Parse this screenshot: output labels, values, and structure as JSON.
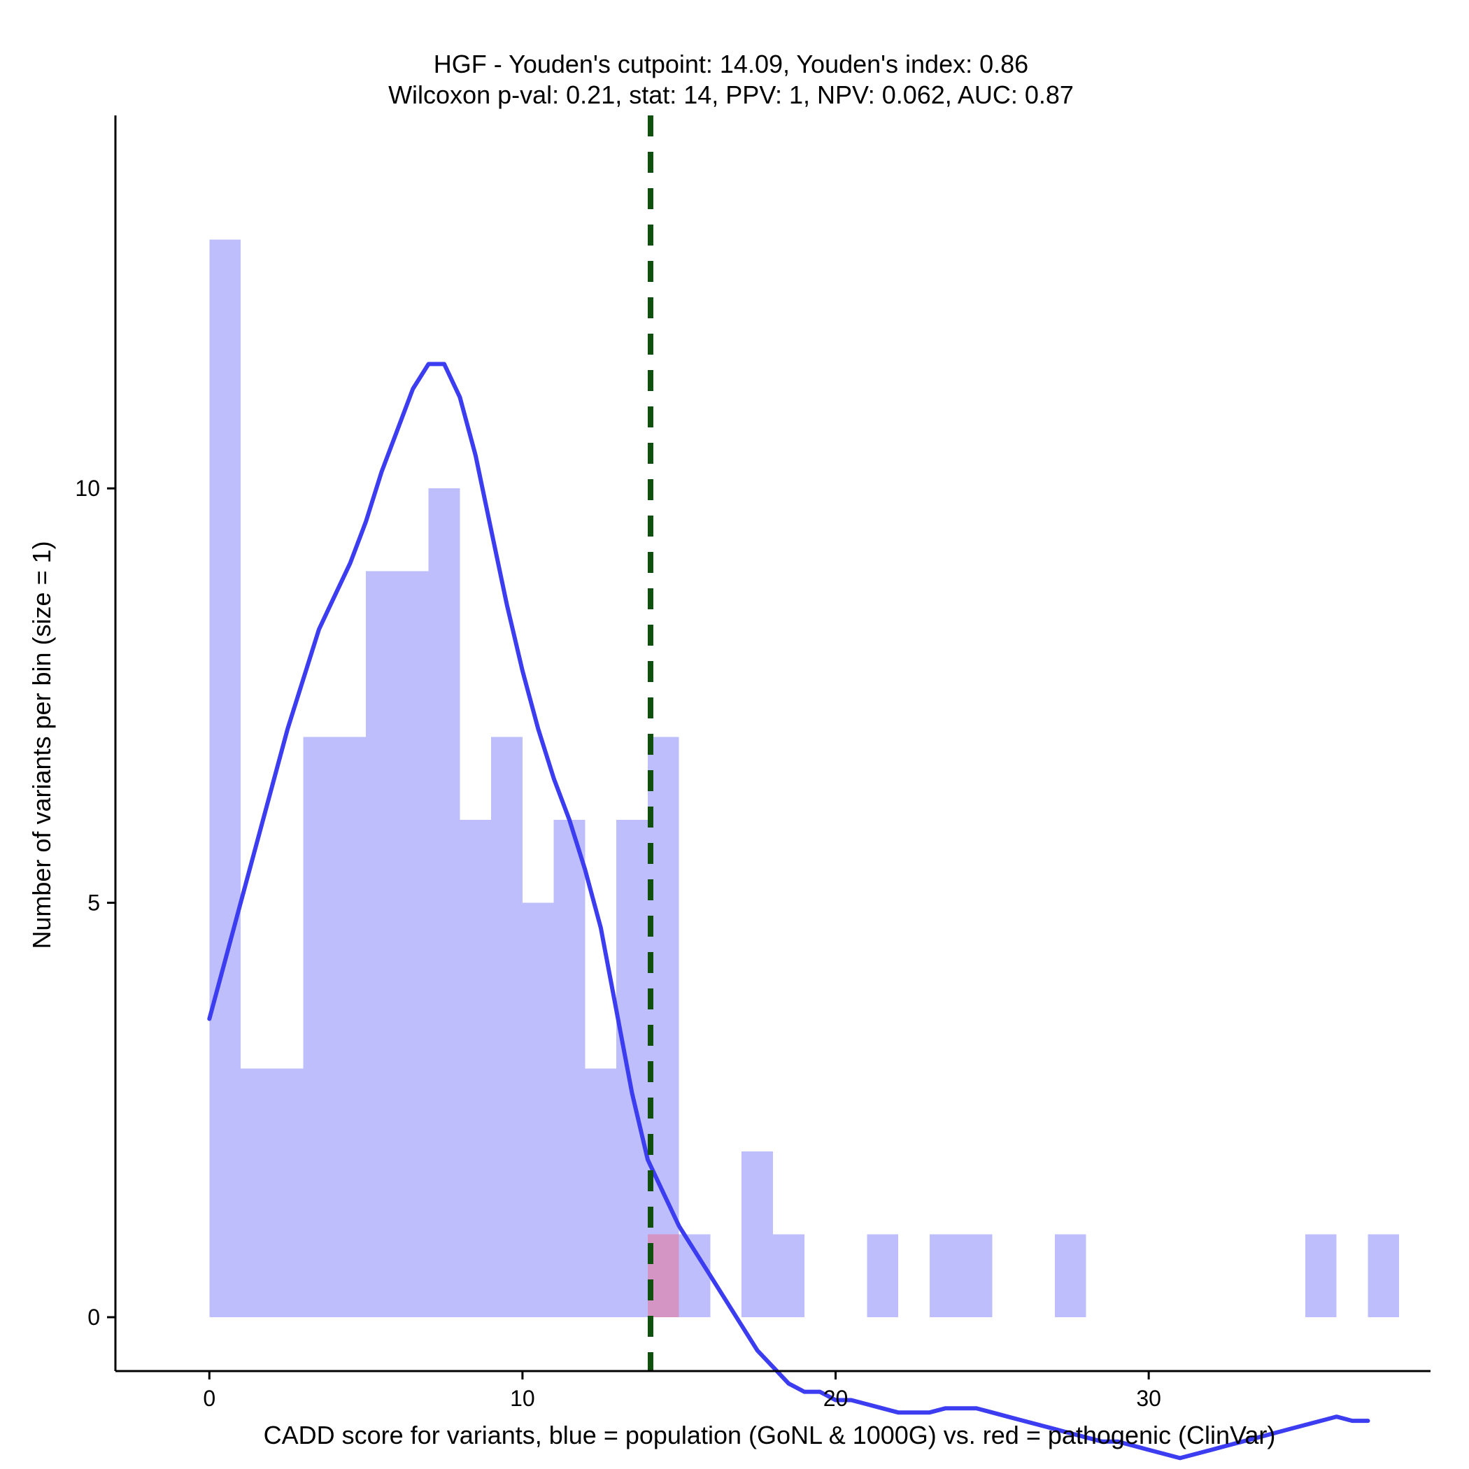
{
  "chart_data": {
    "type": "bar",
    "title_line1": "HGF - Youden's cutpoint: 14.09, Youden's index: 0.86",
    "title_line2": "Wilcoxon p-val: 0.21, stat: 14, PPV: 1, NPV: 0.062, AUC: 0.87",
    "xlabel": "CADD score for variants, blue = population (GoNL & 1000G) vs. red = pathogenic (ClinVar)",
    "ylabel": "Number of variants per bin (size = 1)",
    "xlim": [
      -3,
      39
    ],
    "ylim": [
      -0.65,
      14.5
    ],
    "xticks": [
      0,
      10,
      20,
      30
    ],
    "yticks": [
      0,
      5,
      10
    ],
    "bin_size": 1,
    "colors": {
      "population": "#bebefd",
      "pathogenic": "#d495c4",
      "density": "#3c3cf0",
      "cutpoint": "#0f500f"
    },
    "cutpoint": 14.09,
    "series": [
      {
        "name": "population",
        "bins": [
          {
            "x0": 0,
            "count": 13
          },
          {
            "x0": 1,
            "count": 3
          },
          {
            "x0": 2,
            "count": 3
          },
          {
            "x0": 3,
            "count": 7
          },
          {
            "x0": 4,
            "count": 7
          },
          {
            "x0": 5,
            "count": 9
          },
          {
            "x0": 6,
            "count": 9
          },
          {
            "x0": 7,
            "count": 10
          },
          {
            "x0": 8,
            "count": 6
          },
          {
            "x0": 9,
            "count": 7
          },
          {
            "x0": 10,
            "count": 5
          },
          {
            "x0": 11,
            "count": 6
          },
          {
            "x0": 12,
            "count": 3
          },
          {
            "x0": 13,
            "count": 6
          },
          {
            "x0": 14,
            "count": 7
          },
          {
            "x0": 15,
            "count": 1
          },
          {
            "x0": 17,
            "count": 2
          },
          {
            "x0": 18,
            "count": 1
          },
          {
            "x0": 21,
            "count": 1
          },
          {
            "x0": 23,
            "count": 1
          },
          {
            "x0": 24,
            "count": 1
          },
          {
            "x0": 27,
            "count": 1
          },
          {
            "x0": 35,
            "count": 1
          },
          {
            "x0": 37,
            "count": 1
          }
        ]
      },
      {
        "name": "pathogenic",
        "bins": [
          {
            "x0": 14,
            "count": 1
          }
        ]
      }
    ],
    "density": {
      "x": [
        0,
        0.5,
        1,
        1.5,
        2,
        2.5,
        3,
        3.5,
        4,
        4.5,
        5,
        5.5,
        6,
        6.5,
        7,
        7.5,
        8,
        8.5,
        9,
        9.5,
        10,
        10.5,
        11,
        11.5,
        12,
        12.5,
        13,
        13.5,
        14,
        14.5,
        15,
        15.5,
        16,
        16.5,
        17,
        17.5,
        18,
        18.5,
        19,
        19.5,
        20,
        20.5,
        21,
        21.5,
        22,
        22.5,
        23,
        23.5,
        24,
        24.5,
        25,
        25.5,
        26,
        26.5,
        27,
        27.5,
        28,
        28.5,
        29,
        29.5,
        30,
        30.5,
        31,
        31.5,
        32,
        32.5,
        33,
        33.5,
        34,
        34.5,
        35,
        35.5,
        36,
        36.5,
        37
      ],
      "y": [
        3.6,
        4.3,
        5.0,
        5.7,
        6.4,
        7.1,
        7.7,
        8.3,
        8.7,
        9.1,
        9.6,
        10.2,
        10.7,
        11.2,
        11.5,
        11.5,
        11.1,
        10.4,
        9.5,
        8.6,
        7.8,
        7.1,
        6.5,
        6.0,
        5.4,
        4.7,
        3.7,
        2.7,
        1.9,
        1.5,
        1.1,
        0.8,
        0.5,
        0.2,
        -0.1,
        -0.4,
        -0.6,
        -0.8,
        -0.9,
        -0.9,
        -1.0,
        -1.0,
        -1.05,
        -1.1,
        -1.15,
        -1.15,
        -1.15,
        -1.1,
        -1.1,
        -1.1,
        -1.15,
        -1.2,
        -1.25,
        -1.3,
        -1.35,
        -1.4,
        -1.45,
        -1.5,
        -1.5,
        -1.55,
        -1.6,
        -1.65,
        -1.7,
        -1.65,
        -1.6,
        -1.55,
        -1.5,
        -1.45,
        -1.4,
        -1.35,
        -1.3,
        -1.25,
        -1.2,
        -1.25,
        -1.25
      ]
    }
  }
}
